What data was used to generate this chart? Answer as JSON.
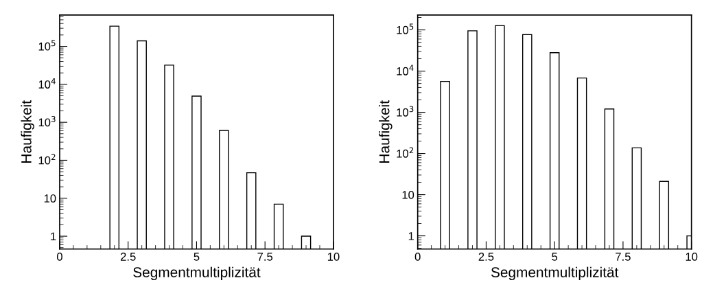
{
  "chart_data": [
    {
      "type": "bar",
      "xlabel": "Segmentmultiplizität",
      "ylabel": "Haufigkeit",
      "log": true,
      "color": "#ffffff",
      "x": [
        2,
        3,
        4,
        5,
        6,
        7,
        8,
        9
      ],
      "values": [
        340000,
        140000,
        32000,
        4900,
        610,
        47,
        7,
        1
      ],
      "xlim": [
        0,
        10
      ],
      "xticks": [
        0,
        2.5,
        5,
        7.5,
        10
      ],
      "ylim": [
        0.46,
        670000
      ],
      "yticks": [
        1,
        10,
        {
          "value": 100,
          "label": "10$^{2}$"
        },
        {
          "value": 1000,
          "label": "10$^{3}$"
        },
        {
          "value": 10000,
          "label": "10$^{4}$"
        },
        {
          "value": 100000,
          "label": "10$^{5}$"
        }
      ]
    },
    {
      "type": "bar",
      "xlabel": "Segmentmultiplizität",
      "ylabel": "Haufigkeit",
      "log": true,
      "color": "#ffffff",
      "x": [
        1,
        2,
        3,
        4,
        5,
        6,
        7,
        8,
        9,
        10
      ],
      "values": [
        5600,
        95000,
        127000,
        77000,
        28000,
        6800,
        1200,
        137,
        21,
        1
      ],
      "xlim": [
        0,
        10
      ],
      "xticks": [
        0,
        2.5,
        5,
        7.5,
        10
      ],
      "ylim": [
        0.48,
        230000
      ],
      "yticks": [
        1,
        10,
        {
          "value": 100,
          "label": "10$^{2}$"
        },
        {
          "value": 1000,
          "label": "10$^{3}$"
        },
        {
          "value": 10000,
          "label": "10$^{4}$"
        },
        {
          "value": 100000,
          "label": "10$^{5}$"
        }
      ]
    }
  ]
}
